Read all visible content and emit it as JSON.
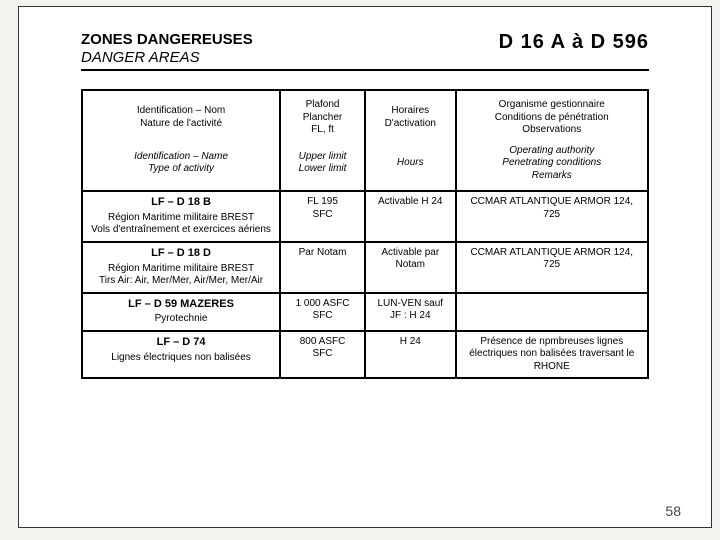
{
  "header": {
    "title_fr": "ZONES DANGEREUSES",
    "title_en": "DANGER AREAS",
    "range": "D 16 A à D 596"
  },
  "columns": {
    "fr": {
      "id": "Identification – Nom\nNature de l'activité",
      "ceiling": "Plafond\nPlancher\nFL, ft",
      "hours": "Horaires\nD'activation",
      "org": "Organisme gestionnaire\nConditions de pénétration\nObservations"
    },
    "en": {
      "id": "Identification – Name\nType of activity",
      "ceiling": "Upper limit\nLower limit",
      "hours": "Hours",
      "org": "Operating authority\nPenetrating conditions\nRemarks"
    }
  },
  "rows": [
    {
      "code": "LF – D 18 B",
      "name": "Région Maritime militaire BREST",
      "activity": "Vols d'entraînement et exercices aériens",
      "ceiling": "FL 195",
      "floor": "SFC",
      "hours": "Activable H 24",
      "org": "CCMAR ATLANTIQUE ARMOR 124, 725"
    },
    {
      "code": "LF – D 18 D",
      "name": "Région Maritime militaire BREST",
      "activity": "Tirs Air: Air, Mer/Mer, Air/Mer, Mer/Air",
      "ceiling": "Par Notam",
      "floor": "",
      "hours": "Activable par Notam",
      "org": "CCMAR ATLANTIQUE ARMOR 124, 725"
    },
    {
      "code": "LF – D 59 MAZERES",
      "name": "",
      "activity": "Pyrotechnie",
      "ceiling": "1 000 ASFC",
      "floor": "SFC",
      "hours": "LUN-VEN sauf JF : H 24",
      "org": ""
    },
    {
      "code": "LF – D 74",
      "name": "",
      "activity": "Lignes électriques non balisées",
      "ceiling": "800 ASFC",
      "floor": "SFC",
      "hours": "H 24",
      "org": "Présence de npmbreuses lignes électriques non balisées traversant le RHONE"
    }
  ],
  "page_number": "58",
  "style": {
    "background": "#f2f2ee",
    "frame_border": "#333333",
    "table_border": "#000000",
    "font_family": "Arial",
    "title_fontsize_pt": 15,
    "range_fontsize_pt": 20,
    "cell_fontsize_pt": 10,
    "pagenum_fontsize_pt": 14
  }
}
